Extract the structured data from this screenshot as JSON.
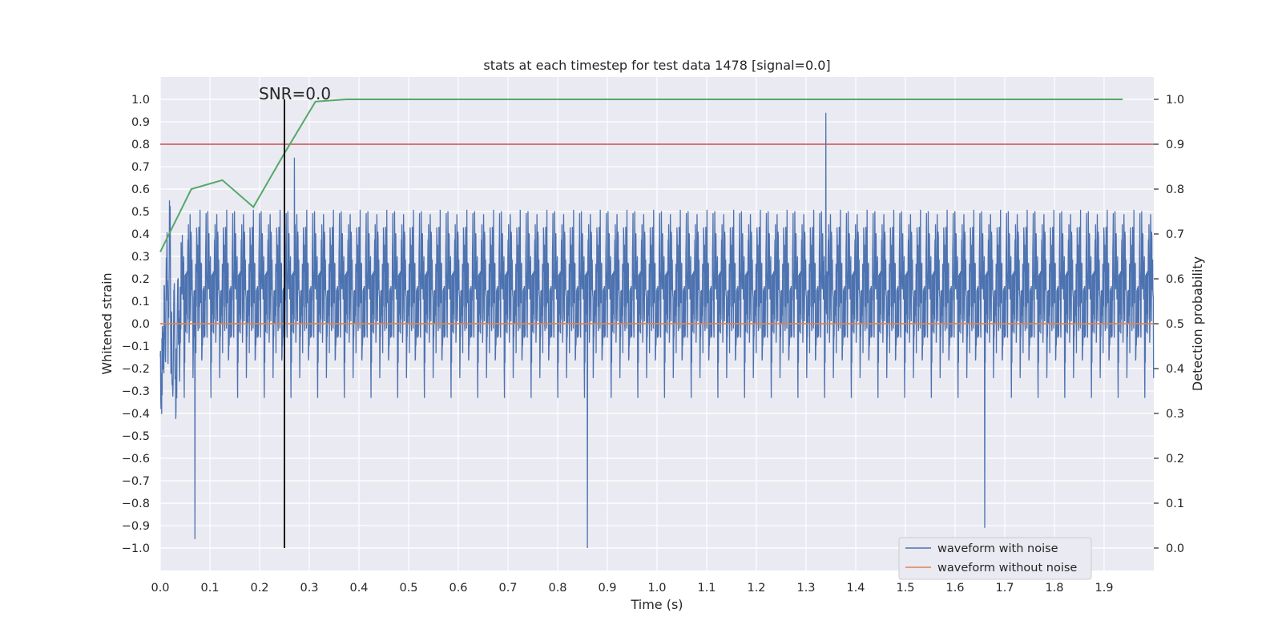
{
  "chart_data": {
    "type": "line",
    "title": "stats at each timestep for test data 1478 [signal=0.0]",
    "xlabel": "Time (s)",
    "ylabel": "Whitened strain",
    "y2label": "Detection probability",
    "xlim": [
      0.0,
      2.0
    ],
    "ylim": [
      -1.1,
      1.1
    ],
    "y2lim": [
      -0.05,
      1.05
    ],
    "x_ticks": [
      0.0,
      0.1,
      0.2,
      0.3,
      0.4,
      0.5,
      0.6,
      0.7,
      0.8,
      0.9,
      1.0,
      1.1,
      1.2,
      1.3,
      1.4,
      1.5,
      1.6,
      1.7,
      1.8,
      1.9
    ],
    "y_ticks": [
      -1.0,
      -0.9,
      -0.8,
      -0.7,
      -0.6,
      -0.5,
      -0.4,
      -0.3,
      -0.2,
      -0.1,
      0.0,
      0.1,
      0.2,
      0.3,
      0.4,
      0.5,
      0.6,
      0.7,
      0.8,
      0.9,
      1.0
    ],
    "y2_ticks": [
      0.0,
      0.1,
      0.2,
      0.3,
      0.4,
      0.5,
      0.6,
      0.7,
      0.8,
      0.9,
      1.0
    ],
    "grid": true,
    "legend_position": "lower-right",
    "colors": {
      "noisy": "#4c72b0",
      "clean": "#dd8452",
      "probability": "#55a868",
      "threshold": "#c44e52",
      "marker": "#000000",
      "plot_bg": "#eaeaf2",
      "grid": "#ffffff"
    },
    "series": [
      {
        "name": "waveform with noise",
        "axis": "left",
        "description_samples": "noise-dominated strain, 4096 samples over 0-2 s, amplitude mostly within ±0.6",
        "peaks": [
          {
            "x": 0.07,
            "y": -0.96
          },
          {
            "x": 0.27,
            "y": 0.74
          },
          {
            "x": 0.86,
            "y": -1.0
          },
          {
            "x": 1.34,
            "y": 0.94
          },
          {
            "x": 1.66,
            "y": -0.91
          }
        ]
      },
      {
        "name": "waveform without noise",
        "axis": "left",
        "x": [
          0.0,
          2.0
        ],
        "y": [
          0.0,
          0.0
        ]
      },
      {
        "axis": "right",
        "x": [
          0.0,
          0.0625,
          0.125,
          0.1875,
          0.25,
          0.3125,
          0.375,
          0.5,
          1.0,
          1.5,
          1.9375
        ],
        "y": [
          0.66,
          0.8,
          0.82,
          0.76,
          0.88,
          0.995,
          1.0,
          1.0,
          1.0,
          1.0,
          1.0
        ]
      },
      {
        "axis": "right",
        "x": [
          0.0,
          2.0
        ],
        "y": [
          0.9,
          0.9
        ]
      }
    ],
    "annotations": [
      {
        "text": "SNR=0.0",
        "x": 0.25
      }
    ],
    "vertical_marker": {
      "x": 0.25,
      "ymin": -1.0,
      "ymax": 1.0
    }
  }
}
